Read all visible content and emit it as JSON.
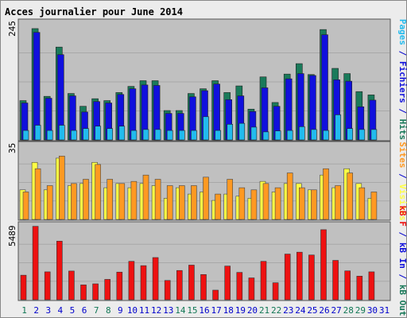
{
  "title": "Acces journalier pour June 2014",
  "colors": {
    "title": "#0000cc",
    "frame_bg": "#ececec",
    "panel_bg": "#c0c0c0",
    "grid": "#a8a8a8",
    "hits": "#1a7a5a",
    "files": "#1010dd",
    "pages": "#22bbee",
    "visits": "#ffff44",
    "sites": "#ff9922",
    "kb": "#ee1111",
    "day_normal": "#0000cc",
    "day_weekend": "#117755"
  },
  "right_labels": {
    "top": [
      {
        "text": "Pages",
        "color": "#22bbee"
      },
      {
        "text": " / ",
        "color": "#0000cc"
      },
      {
        "text": "Fichiers",
        "color": "#1010dd"
      },
      {
        "text": " / ",
        "color": "#0000cc"
      },
      {
        "text": "Hits",
        "color": "#1a7a5a"
      }
    ],
    "middle": [
      {
        "text": "Sites",
        "color": "#ff9922"
      },
      {
        "text": " / ",
        "color": "#0000cc"
      },
      {
        "text": "Visites",
        "color": "#ffff44"
      }
    ],
    "bottom": [
      {
        "text": "kB F",
        "color": "#ee1111"
      },
      {
        "text": " / ",
        "color": "#0000cc"
      },
      {
        "text": "kB In",
        "color": "#1010dd"
      },
      {
        "text": " / ",
        "color": "#0000cc"
      },
      {
        "text": "kB Out",
        "color": "#1a7a5a"
      }
    ]
  },
  "chart_data": [
    {
      "type": "bar",
      "panel": "top",
      "ymax_label": "245",
      "ylim": [
        0,
        245
      ],
      "categories": [
        "1",
        "2",
        "3",
        "4",
        "5",
        "6",
        "7",
        "8",
        "9",
        "10",
        "11",
        "12",
        "13",
        "14",
        "15",
        "16",
        "17",
        "18",
        "19",
        "20",
        "21",
        "22",
        "23",
        "24",
        "25",
        "26",
        "27",
        "28",
        "29",
        "30",
        "31"
      ],
      "weekend_days": [
        "1",
        "7",
        "8",
        "14",
        "15",
        "21",
        "22",
        "28",
        "29"
      ],
      "series": [
        {
          "name": "Hits",
          "values": [
            83,
            235,
            92,
            196,
            98,
            71,
            87,
            83,
            100,
            113,
            125,
            125,
            62,
            62,
            98,
            108,
            125,
            100,
            114,
            65,
            133,
            79,
            139,
            161,
            138,
            233,
            151,
            140,
            102,
            95,
            0
          ]
        },
        {
          "name": "Fichiers",
          "values": [
            78,
            227,
            88,
            180,
            93,
            59,
            81,
            78,
            96,
            108,
            116,
            115,
            56,
            56,
            91,
            104,
            118,
            85,
            93,
            60,
            110,
            71,
            129,
            140,
            136,
            222,
            127,
            124,
            70,
            84,
            0
          ]
        },
        {
          "name": "Pages",
          "values": [
            20,
            31,
            20,
            31,
            20,
            24,
            29,
            24,
            29,
            20,
            22,
            22,
            20,
            20,
            20,
            49,
            20,
            33,
            35,
            27,
            17,
            19,
            20,
            28,
            22,
            20,
            53,
            24,
            22,
            22,
            0
          ]
        }
      ]
    },
    {
      "type": "bar",
      "panel": "middle",
      "ymax_label": "35",
      "ylim": [
        0,
        35
      ],
      "categories": [
        "1",
        "2",
        "3",
        "4",
        "5",
        "6",
        "7",
        "8",
        "9",
        "10",
        "11",
        "12",
        "13",
        "14",
        "15",
        "16",
        "17",
        "18",
        "19",
        "20",
        "21",
        "22",
        "23",
        "24",
        "25",
        "26",
        "27",
        "28",
        "29",
        "30",
        "31"
      ],
      "series": [
        {
          "name": "Visites",
          "values": [
            14,
            27,
            14,
            29,
            16,
            17,
            27,
            15,
            17,
            15,
            17,
            16,
            10,
            15,
            12,
            13,
            9,
            12,
            11,
            10,
            18,
            13,
            17,
            17,
            14,
            21,
            15,
            24,
            17,
            10,
            0
          ]
        },
        {
          "name": "Sites",
          "values": [
            13,
            24,
            16,
            30,
            17,
            19,
            26,
            19,
            17,
            18,
            21,
            19,
            16,
            16,
            16,
            20,
            12,
            19,
            15,
            14,
            17,
            15,
            22,
            15,
            14,
            24,
            16,
            22,
            15,
            13,
            0
          ]
        }
      ]
    },
    {
      "type": "bar",
      "panel": "bottom",
      "ymax_label": "5489",
      "ylim": [
        0,
        5489
      ],
      "categories": [
        "1",
        "2",
        "3",
        "4",
        "5",
        "6",
        "7",
        "8",
        "9",
        "10",
        "11",
        "12",
        "13",
        "14",
        "15",
        "16",
        "17",
        "18",
        "19",
        "20",
        "21",
        "22",
        "23",
        "24",
        "25",
        "26",
        "27",
        "28",
        "29",
        "30",
        "31"
      ],
      "series": [
        {
          "name": "kB F",
          "values": [
            1820,
            5450,
            2070,
            4350,
            2130,
            1100,
            1180,
            1510,
            2050,
            2850,
            2530,
            3130,
            1430,
            2170,
            2570,
            1870,
            710,
            2500,
            2030,
            1620,
            2850,
            1260,
            3390,
            3530,
            3320,
            5200,
            2920,
            2140,
            1750,
            2070,
            0
          ]
        }
      ]
    }
  ],
  "x_labels": [
    "1",
    "2",
    "3",
    "4",
    "5",
    "6",
    "7",
    "8",
    "9",
    "10",
    "11",
    "12",
    "13",
    "14",
    "15",
    "16",
    "17",
    "18",
    "19",
    "20",
    "21",
    "22",
    "23",
    "24",
    "25",
    "26",
    "27",
    "28",
    "29",
    "30",
    "31"
  ]
}
